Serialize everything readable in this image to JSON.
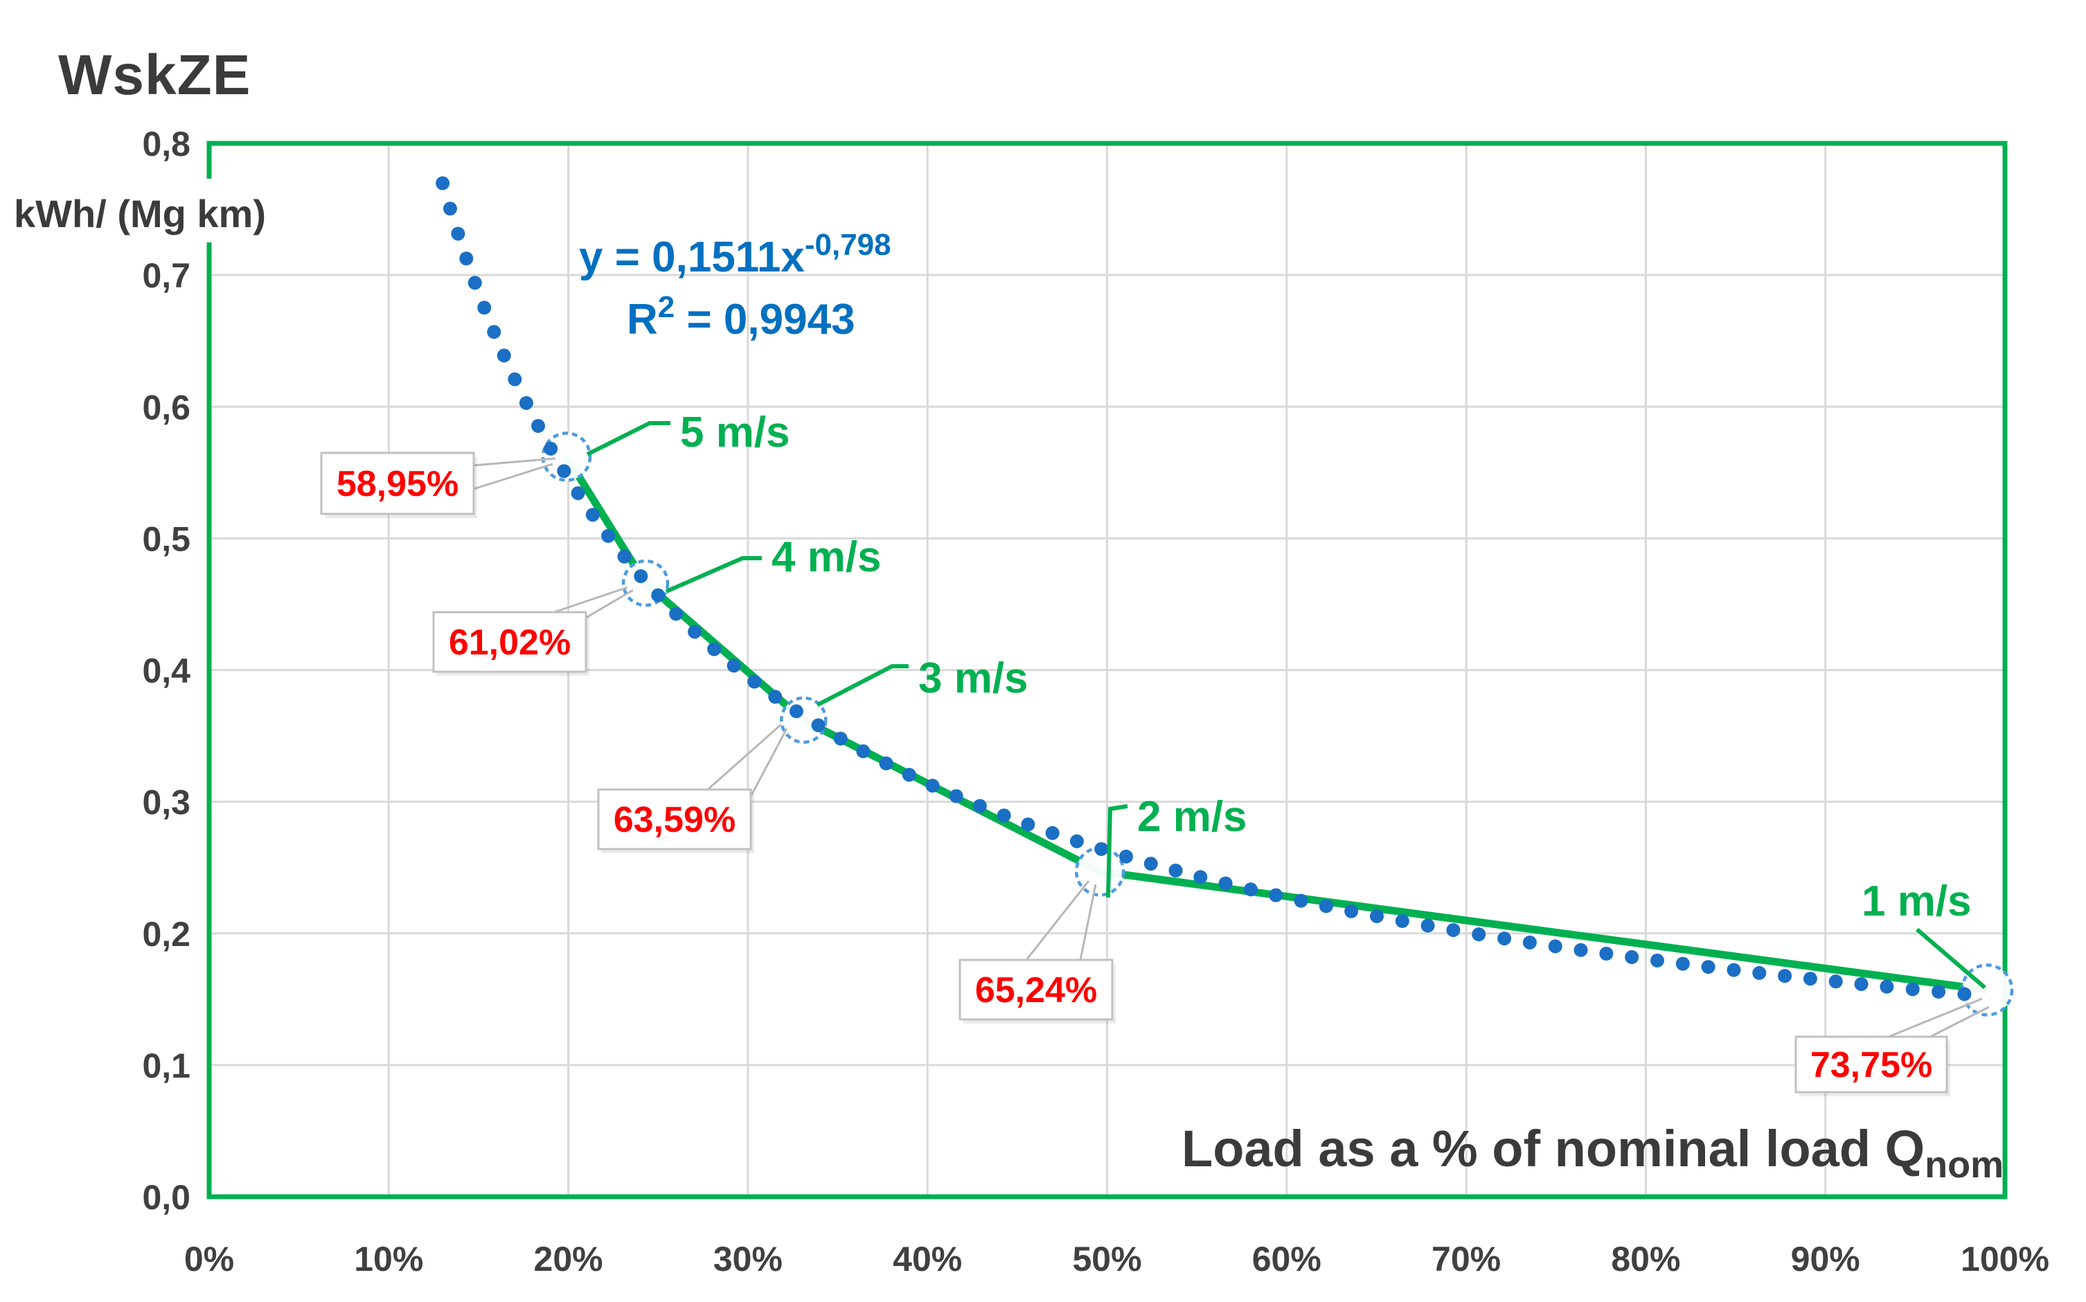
{
  "chart_data": {
    "type": "scatter",
    "title": "WskZE",
    "y_axis": {
      "label": "kWh/ (Mg km)",
      "min": 0.0,
      "max": 0.8,
      "tick_step": 0.1,
      "tick_labels": [
        "0,0",
        "0,1",
        "0,2",
        "0,3",
        "0,4",
        "0,5",
        "0,6",
        "0,7",
        "0,8"
      ]
    },
    "x_axis": {
      "label_main": "Load as a % of nominal load Q",
      "label_subscript": "nom",
      "min": 0,
      "max": 100,
      "tick_step": 10,
      "tick_labels": [
        "0%",
        "10%",
        "20%",
        "30%",
        "40%",
        "50%",
        "60%",
        "70%",
        "80%",
        "90%",
        "100%"
      ]
    },
    "points": [
      {
        "speed_label": "5 m/s",
        "x_pct": 19.9,
        "y": 0.562,
        "annotation": "58,95%"
      },
      {
        "speed_label": "4 m/s",
        "x_pct": 24.3,
        "y": 0.466,
        "annotation": "61,02%"
      },
      {
        "speed_label": "3 m/s",
        "x_pct": 33.1,
        "y": 0.362,
        "annotation": "63,59%"
      },
      {
        "speed_label": "2 m/s",
        "x_pct": 49.6,
        "y": 0.247,
        "annotation": "65,24%"
      },
      {
        "speed_label": "1 m/s",
        "x_pct": 99.0,
        "y": 0.157,
        "annotation": "73,75%"
      }
    ],
    "trendline": {
      "type": "power",
      "a": 0.1511,
      "b": -0.798,
      "x_domain_pct": [
        13.0,
        98.5
      ],
      "equation_main": "y = 0,1511x",
      "equation_exponent": "-0,798",
      "r2_base": "R",
      "r2_sup": "2",
      "r2_rest": " = 0,9943"
    },
    "grid": true,
    "legend": "none",
    "colors": {
      "series_line": "#00B050",
      "plot_border": "#00B050",
      "speed_labels": "#00B050",
      "trend_dots": "#1B6FC4",
      "marker_ring": "#4D9BE0",
      "annotation_text": "#FE0000",
      "equation_text": "#0070C0",
      "gridlines": "#D9D9D9",
      "axis_text": "#404040",
      "leader_lines": "#B7B7B7",
      "callout_border": "#C0C0C0",
      "callout_fill": "#FFFFFF"
    }
  }
}
